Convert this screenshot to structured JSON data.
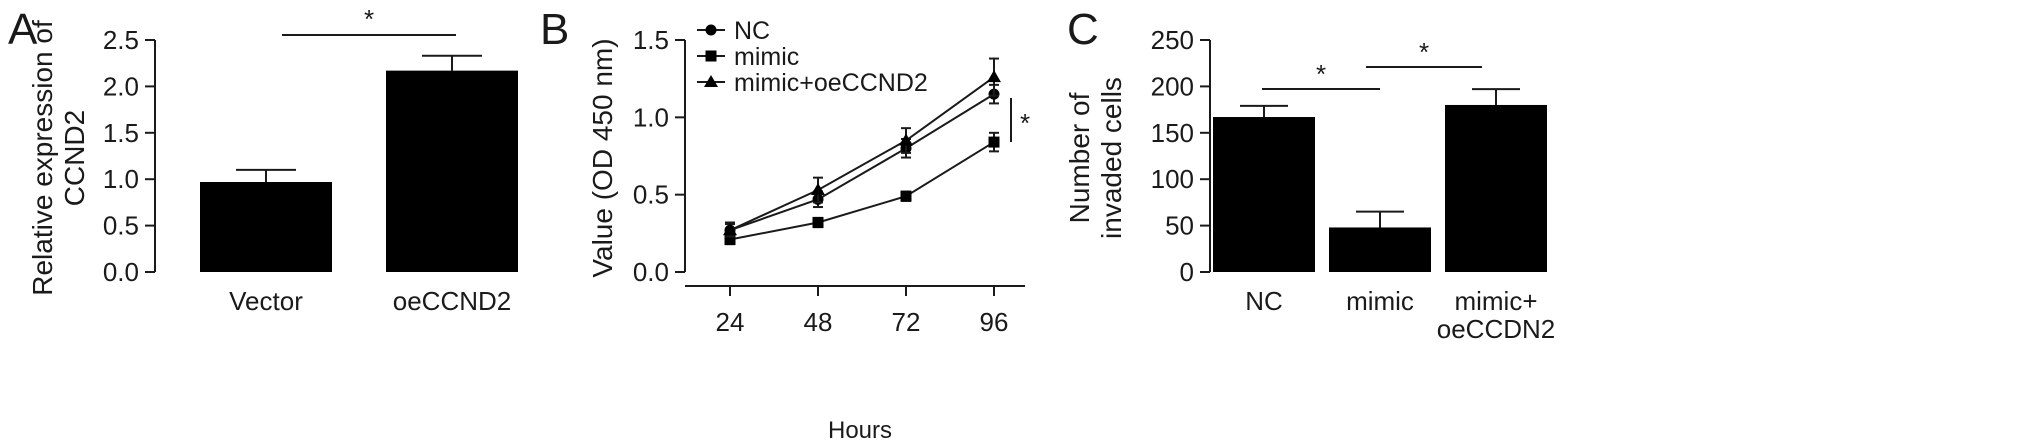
{
  "chart_data": [
    {
      "panel": "A",
      "type": "bar",
      "categories": [
        "Vector",
        "oeCCND2"
      ],
      "values": [
        0.97,
        2.17
      ],
      "errors": [
        0.13,
        0.16
      ],
      "ylabel_lines": [
        "Relative expression of",
        "CCND2"
      ],
      "xlabel": "",
      "ylim": [
        0,
        2.5
      ],
      "yticks": [
        "0.0",
        "0.5",
        "1.0",
        "1.5",
        "2.0",
        "2.5"
      ],
      "ytick_values": [
        0,
        0.5,
        1.0,
        1.5,
        2.0,
        2.5
      ],
      "significance": [
        {
          "between": [
            0,
            1
          ],
          "label": "*"
        }
      ],
      "bar_color": "#000000"
    },
    {
      "panel": "B",
      "type": "line",
      "x": [
        24,
        48,
        72,
        96
      ],
      "xticks": [
        "24",
        "48",
        "72",
        "96"
      ],
      "xlabel": "Hours",
      "ylabel_lines": [
        "Value (OD 450 nm)"
      ],
      "ylim": [
        0,
        1.5
      ],
      "yticks": [
        "0.0",
        "0.5",
        "1.0",
        "1.5"
      ],
      "ytick_values": [
        0,
        0.5,
        1.0,
        1.5
      ],
      "series": [
        {
          "name": "NC",
          "marker": "circle",
          "values": [
            0.27,
            0.47,
            0.8,
            1.15
          ],
          "errors": [
            0.05,
            0.05,
            0.06,
            0.06
          ]
        },
        {
          "name": "mimic",
          "marker": "square",
          "values": [
            0.21,
            0.32,
            0.49,
            0.84
          ],
          "errors": [
            0.03,
            0.03,
            0.03,
            0.06
          ]
        },
        {
          "name": "mimic+oeCCND2",
          "marker": "triangle",
          "values": [
            0.27,
            0.53,
            0.85,
            1.26
          ],
          "errors": [
            0.04,
            0.08,
            0.08,
            0.12
          ]
        }
      ],
      "legend_position": "top-left",
      "significance": [
        {
          "label": "*"
        }
      ]
    },
    {
      "panel": "C",
      "type": "bar",
      "categories": [
        "NC",
        "mimic",
        "mimic+\noeCCDN2"
      ],
      "category_lines": [
        [
          "NC"
        ],
        [
          "mimic"
        ],
        [
          "mimic+",
          "oeCCDN2"
        ]
      ],
      "values": [
        167,
        48,
        180
      ],
      "errors": [
        12,
        17,
        17
      ],
      "ylabel_lines": [
        "Number of",
        "invaded cells"
      ],
      "xlabel": "",
      "ylim": [
        0,
        250
      ],
      "yticks": [
        "0",
        "50",
        "100",
        "150",
        "200",
        "250"
      ],
      "ytick_values": [
        0,
        50,
        100,
        150,
        200,
        250
      ],
      "significance": [
        {
          "between": [
            0,
            1
          ],
          "label": "*"
        },
        {
          "between": [
            1,
            2
          ],
          "label": "*"
        }
      ],
      "bar_color": "#000000"
    }
  ]
}
